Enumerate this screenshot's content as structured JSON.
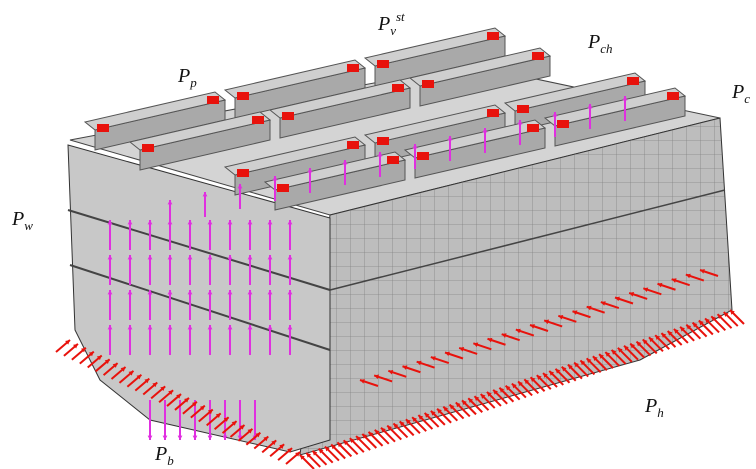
{
  "labels": {
    "pv": {
      "base": "P",
      "sub": "v",
      "sup": "st"
    },
    "pch": {
      "base": "P",
      "sub": "ch"
    },
    "pp": {
      "base": "P",
      "sub": "p"
    },
    "pc": {
      "base": "P",
      "sub": "c"
    },
    "pw": {
      "base": "P",
      "sub": "w"
    },
    "pb": {
      "base": "P",
      "sub": "b"
    },
    "ph": {
      "base": "P",
      "sub": "h"
    }
  }
}
